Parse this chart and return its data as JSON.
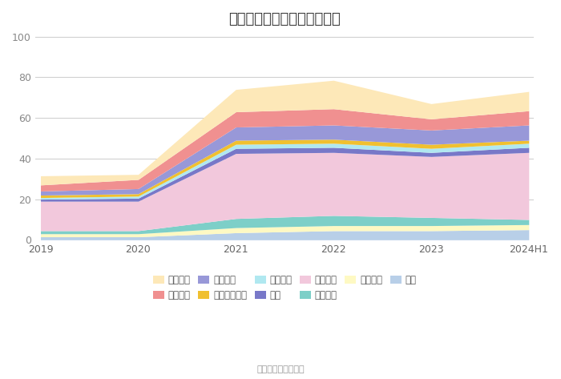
{
  "title": "历年主要资产堆积图（亿元）",
  "source": "数据来源：恒生聚源",
  "x_labels": [
    "2019",
    "2020",
    "2021",
    "2022",
    "2023",
    "2024H1"
  ],
  "series": [
    {
      "name": "其它",
      "color": "#b8cfe8",
      "values": [
        1.5,
        1.5,
        3.5,
        4.5,
        4.5,
        5.0
      ]
    },
    {
      "name": "无形资产",
      "color": "#fef9c3",
      "values": [
        1.5,
        1.5,
        2.5,
        2.5,
        2.5,
        2.5
      ]
    },
    {
      "name": "在建工程",
      "color": "#7dcfc8",
      "values": [
        1.5,
        1.5,
        4.5,
        5.0,
        4.0,
        2.5
      ]
    },
    {
      "name": "固定资产",
      "color": "#f2c8dc",
      "values": [
        14.5,
        14.5,
        32.0,
        31.0,
        30.0,
        33.0
      ]
    },
    {
      "name": "存货",
      "color": "#7878c8",
      "values": [
        1.0,
        1.5,
        2.5,
        2.5,
        2.0,
        2.5
      ]
    },
    {
      "name": "预付款项",
      "color": "#b0e8f0",
      "values": [
        0.8,
        1.0,
        2.0,
        2.0,
        2.0,
        2.0
      ]
    },
    {
      "name": "应收款项融资",
      "color": "#f0c030",
      "values": [
        1.2,
        1.2,
        2.0,
        2.0,
        2.0,
        1.5
      ]
    },
    {
      "name": "应收账款",
      "color": "#9898d8",
      "values": [
        2.0,
        2.5,
        6.5,
        7.0,
        7.0,
        7.5
      ]
    },
    {
      "name": "应收票据",
      "color": "#f09090",
      "values": [
        3.0,
        4.5,
        7.5,
        8.0,
        5.5,
        7.0
      ]
    },
    {
      "name": "货币资金",
      "color": "#fde8b8",
      "values": [
        4.5,
        2.5,
        11.0,
        14.0,
        7.5,
        9.5
      ]
    }
  ],
  "ylim": [
    0,
    100
  ],
  "yticks": [
    0,
    20,
    40,
    60,
    80,
    100
  ],
  "background_color": "#ffffff",
  "grid_color": "#cccccc",
  "title_fontsize": 13,
  "legend_fontsize": 8.5,
  "axis_fontsize": 9,
  "legend_row1": [
    "货币资金",
    "应收票据",
    "应收账款",
    "应收款项融资",
    "预付款项",
    "存货"
  ],
  "legend_row2": [
    "固定资产",
    "在建工程",
    "无形资产",
    "其它"
  ]
}
